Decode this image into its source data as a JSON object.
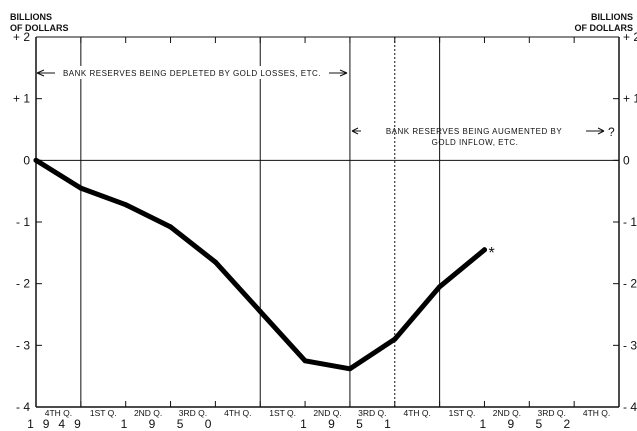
{
  "chart_data": {
    "type": "line",
    "left_unit_label": [
      "BILLIONS",
      "OF DOLLARS"
    ],
    "right_unit_label": [
      "BILLIONS",
      "OF DOLLARS"
    ],
    "yticks": [
      {
        "value": 2,
        "label": "+ 2"
      },
      {
        "value": 1,
        "label": "+ 1"
      },
      {
        "value": 0,
        "label": "0"
      },
      {
        "value": -1,
        "label": "- 1"
      },
      {
        "value": -2,
        "label": "- 2"
      },
      {
        "value": -3,
        "label": "- 3"
      },
      {
        "value": -4,
        "label": "- 4"
      }
    ],
    "ylim": [
      -4,
      2
    ],
    "quarter_labels": [
      "4TH Q.",
      "1ST Q.",
      "2ND Q.",
      "3RD Q.",
      "4TH Q.",
      "1ST Q.",
      "2ND Q.",
      "3RD Q.",
      "4TH Q.",
      "1ST Q.",
      "2ND Q.",
      "3RD Q.",
      "4TH Q."
    ],
    "year_labels": [
      {
        "label": "1949",
        "from": 0,
        "to": 0
      },
      {
        "label": "1 9 5 0",
        "from": 1,
        "to": 4
      },
      {
        "label": "1 9 5 1",
        "from": 5,
        "to": 8
      },
      {
        "label": "1 9 5 2",
        "from": 9,
        "to": 12
      }
    ],
    "year_dividers": [
      0.5,
      4.5,
      8.5
    ],
    "dotted_divider": 6.5,
    "x": [
      0,
      1,
      2,
      3,
      4,
      5,
      6,
      7,
      8,
      9,
      10
    ],
    "values": [
      0.0,
      -0.45,
      -0.72,
      -1.08,
      -1.65,
      -2.45,
      -3.25,
      -3.38,
      -2.9,
      -2.05,
      -1.45
    ],
    "end_marker": "*",
    "annotations": [
      {
        "text": "BANK RESERVES BEING DEPLETED BY GOLD LOSSES, ETC.",
        "arrow": "both"
      },
      {
        "lines": [
          "BANK RESERVES BEING AUGMENTED BY",
          "GOLD INFLOW, ETC."
        ],
        "arrow_suffix": "?"
      }
    ],
    "grid": false
  }
}
